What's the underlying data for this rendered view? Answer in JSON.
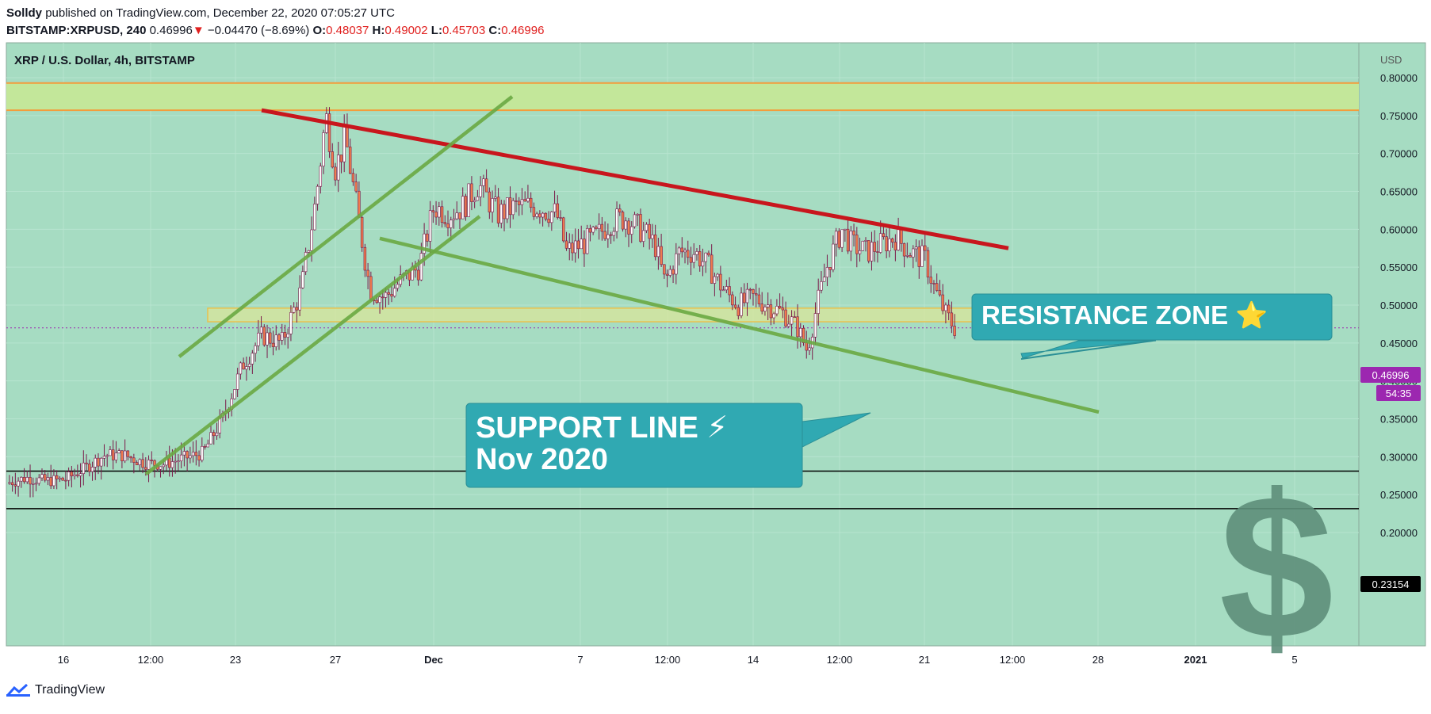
{
  "header": {
    "author": "Solldy",
    "published": "published on TradingView.com, December 22, 2020 07:05:27 UTC",
    "symbol": "BITSTAMP:XRPUSD, 240",
    "last": "0.46996",
    "arrow": "▼",
    "change": "−0.04470 (−8.69%)",
    "o_label": "O:",
    "o_value": "0.48037",
    "h_label": "H:",
    "h_value": "0.49002",
    "l_label": "L:",
    "l_value": "0.45703",
    "c_label": "C:",
    "c_value": "0.46996"
  },
  "legend_title": "XRP / U.S. Dollar, 4h, BITSTAMP",
  "footer": {
    "brand": "TradingView"
  },
  "price_badges": {
    "current": "0.46996",
    "countdown": "54:35",
    "level": "0.23154"
  },
  "annotations": {
    "resistance": "RESISTANCE ZONE ⭐",
    "support_line1": "SUPPORT LINE ⚡",
    "support_line2": "Nov 2020",
    "dollar_sign": "$"
  },
  "colors": {
    "chart_bg": "#a6dcc2",
    "up_candle": "#ffffff",
    "down_candle": "#f07b4e",
    "wick": "#7a1a4a",
    "resistance_line": "#c8161d",
    "support_lines": "#6aa843",
    "zone_fill": "#c3e79a",
    "zone_border": "#f39c3b",
    "callout": "#30a9b2",
    "badge_current": "#9c27b0",
    "badge_level": "#000000"
  },
  "chart_data": {
    "type": "candlestick",
    "currency_label": "USD",
    "ylim": [
      0.15,
      0.84
    ],
    "y_ticks": [
      "0.80000",
      "0.75000",
      "0.70000",
      "0.65000",
      "0.60000",
      "0.55000",
      "0.50000",
      "0.45000",
      "0.40000",
      "0.35000",
      "0.30000",
      "0.25000",
      "0.20000"
    ],
    "x_ticks": [
      "16",
      "12:00",
      "23",
      "27",
      "Dec",
      "7",
      "12:00",
      "14",
      "12:00",
      "21",
      "12:00",
      "28",
      "2021",
      "5"
    ],
    "horizontal_levels": [
      0.281,
      0.2315
    ],
    "resistance_band": [
      0.757,
      0.793
    ],
    "support_band": [
      0.478,
      0.496
    ],
    "current_price": 0.46996,
    "price_path": [
      [
        0,
        0.265
      ],
      [
        0.02,
        0.272
      ],
      [
        0.04,
        0.268
      ],
      [
        0.06,
        0.27
      ],
      [
        0.08,
        0.285
      ],
      [
        0.1,
        0.302
      ],
      [
        0.12,
        0.302
      ],
      [
        0.14,
        0.292
      ],
      [
        0.16,
        0.29
      ],
      [
        0.18,
        0.298
      ],
      [
        0.2,
        0.305
      ],
      [
        0.22,
        0.35
      ],
      [
        0.24,
        0.42
      ],
      [
        0.26,
        0.46
      ],
      [
        0.28,
        0.45
      ],
      [
        0.3,
        0.52
      ],
      [
        0.315,
        0.64
      ],
      [
        0.325,
        0.75
      ],
      [
        0.335,
        0.68
      ],
      [
        0.345,
        0.72
      ],
      [
        0.355,
        0.64
      ],
      [
        0.37,
        0.52
      ],
      [
        0.385,
        0.51
      ],
      [
        0.4,
        0.53
      ],
      [
        0.42,
        0.55
      ],
      [
        0.435,
        0.63
      ],
      [
        0.45,
        0.62
      ],
      [
        0.465,
        0.63
      ],
      [
        0.48,
        0.66
      ],
      [
        0.49,
        0.64
      ],
      [
        0.5,
        0.62
      ],
      [
        0.52,
        0.63
      ],
      [
        0.54,
        0.63
      ],
      [
        0.56,
        0.62
      ],
      [
        0.57,
        0.57
      ],
      [
        0.585,
        0.58
      ],
      [
        0.6,
        0.59
      ],
      [
        0.615,
        0.61
      ],
      [
        0.63,
        0.615
      ],
      [
        0.645,
        0.6
      ],
      [
        0.66,
        0.58
      ],
      [
        0.67,
        0.53
      ],
      [
        0.685,
        0.57
      ],
      [
        0.7,
        0.57
      ],
      [
        0.715,
        0.55
      ],
      [
        0.73,
        0.52
      ],
      [
        0.745,
        0.5
      ],
      [
        0.76,
        0.51
      ],
      [
        0.775,
        0.5
      ],
      [
        0.79,
        0.49
      ],
      [
        0.805,
        0.47
      ],
      [
        0.815,
        0.44
      ],
      [
        0.825,
        0.5
      ],
      [
        0.835,
        0.55
      ],
      [
        0.85,
        0.6
      ],
      [
        0.86,
        0.58
      ],
      [
        0.875,
        0.57
      ],
      [
        0.89,
        0.58
      ],
      [
        0.905,
        0.59
      ],
      [
        0.92,
        0.57
      ],
      [
        0.935,
        0.56
      ],
      [
        0.945,
        0.52
      ],
      [
        0.955,
        0.49
      ],
      [
        0.965,
        0.47
      ]
    ]
  }
}
